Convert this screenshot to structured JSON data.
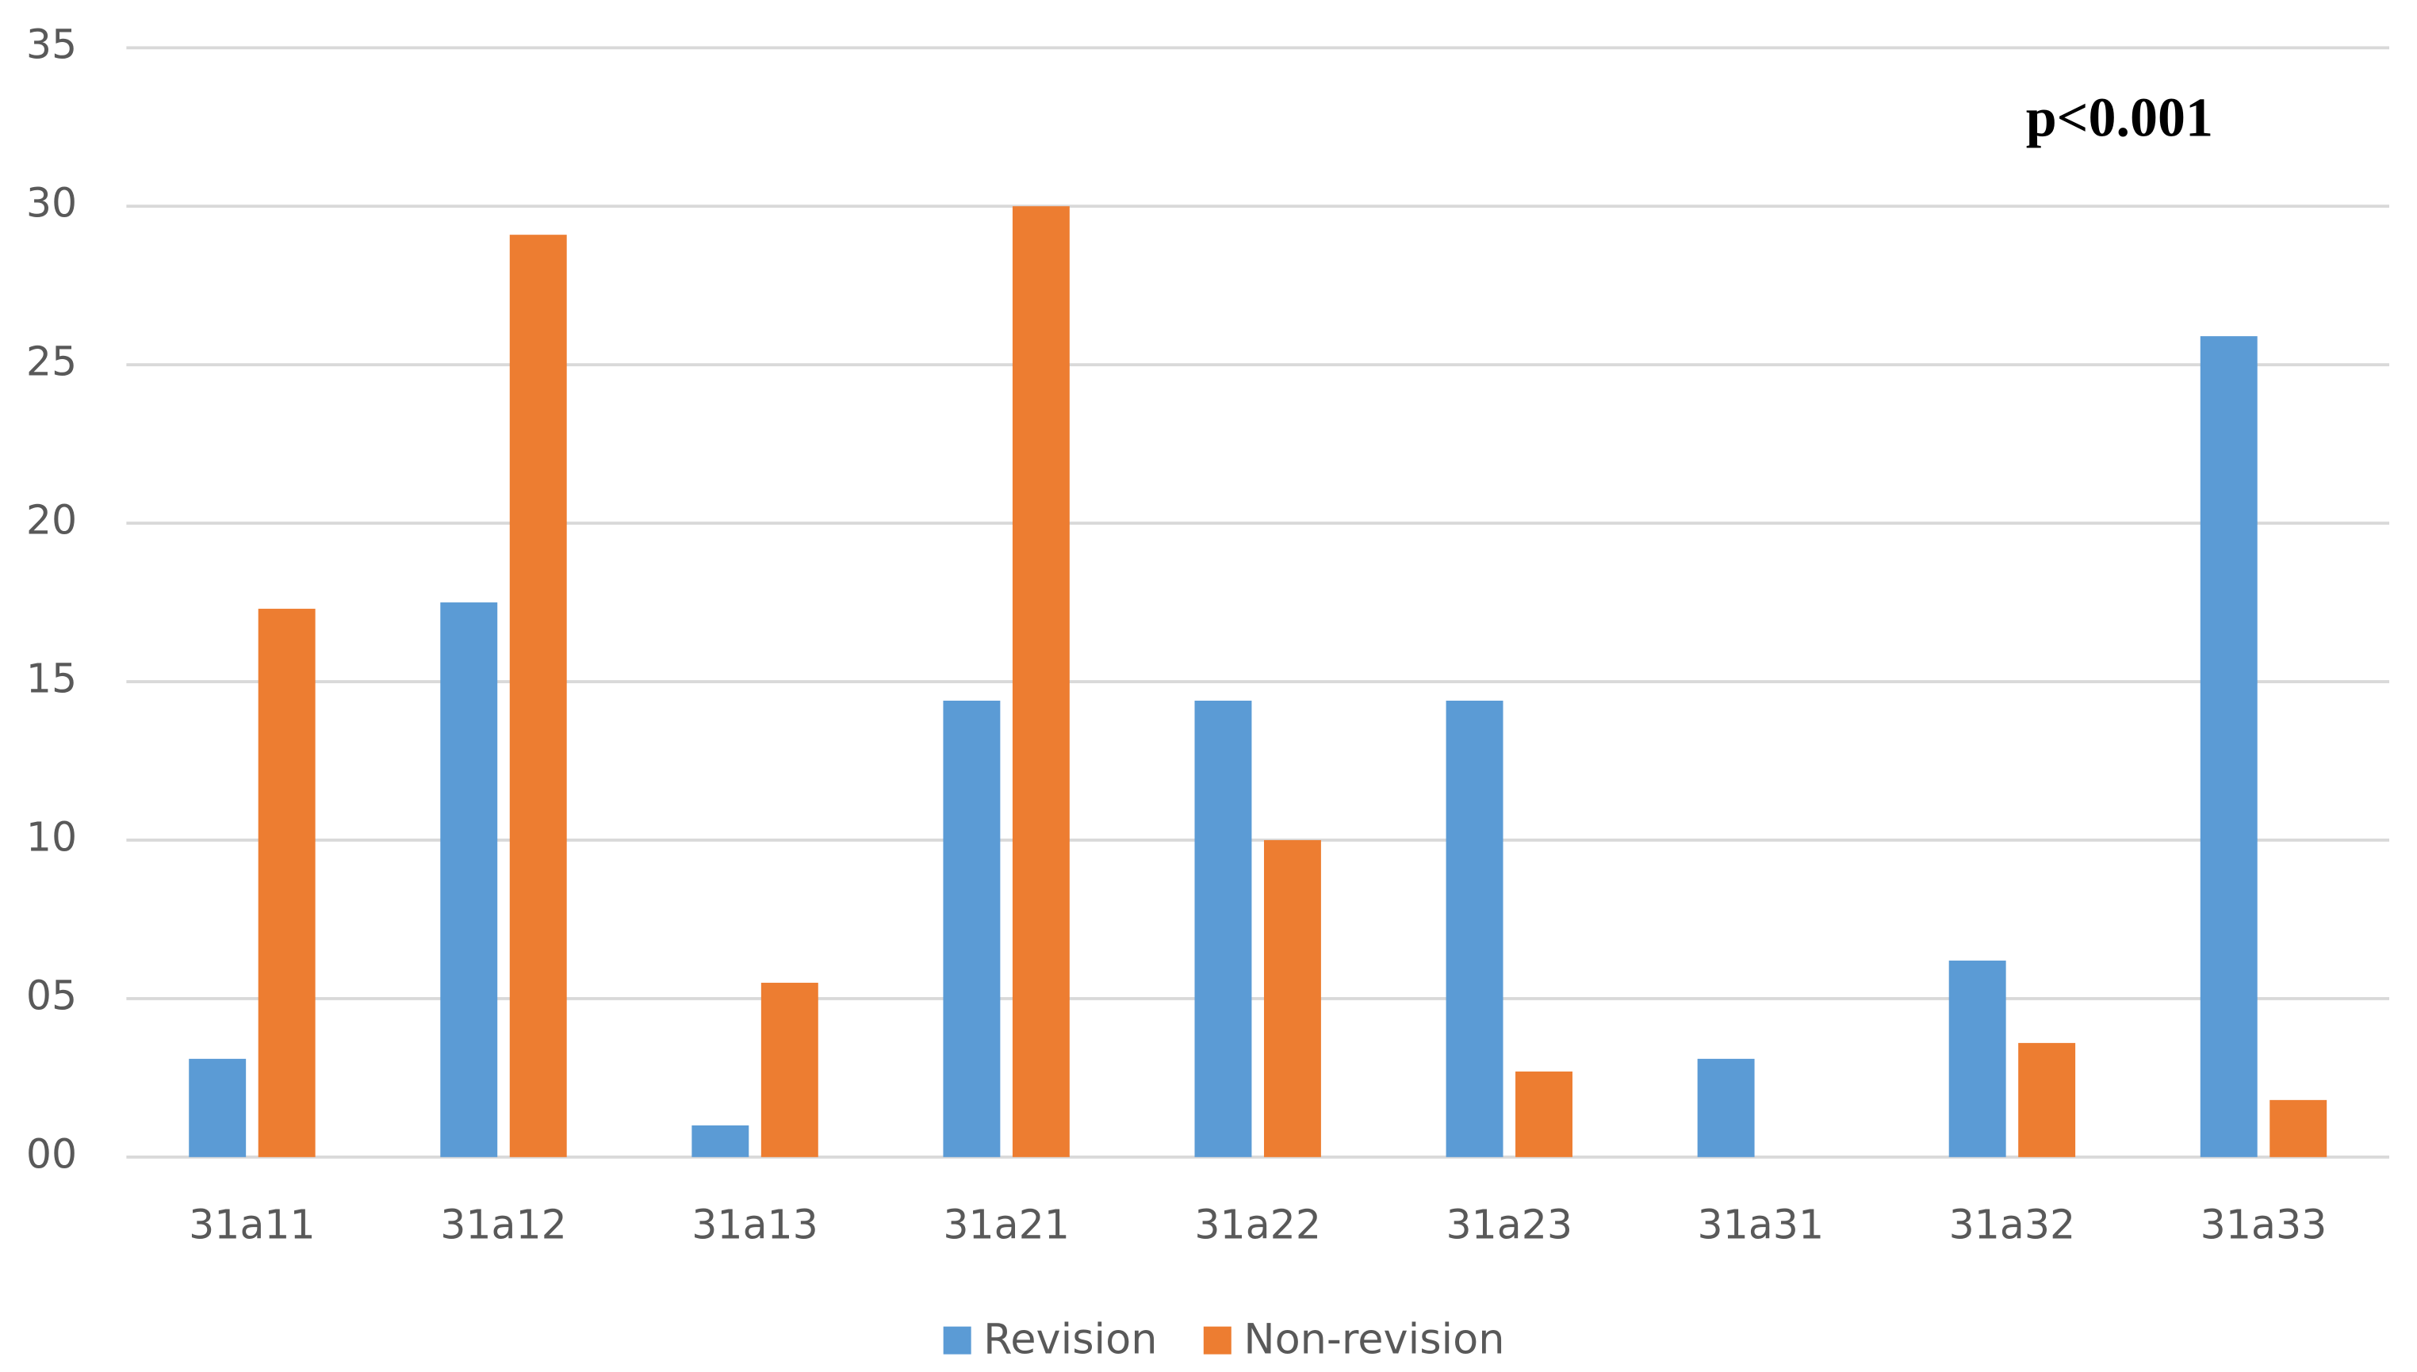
{
  "chart_data": {
    "type": "bar",
    "categories": [
      "31a11",
      "31a12",
      "31a13",
      "31a21",
      "31a22",
      "31a23",
      "31a31",
      "31a32",
      "31a33"
    ],
    "series": [
      {
        "name": "Revision",
        "color": "#5b9bd5",
        "values": [
          3.1,
          17.5,
          1.0,
          14.4,
          14.4,
          14.4,
          3.1,
          6.2,
          25.9
        ]
      },
      {
        "name": "Non-revision",
        "color": "#ed7d31",
        "values": [
          17.3,
          29.1,
          5.5,
          30.0,
          10.0,
          2.7,
          0,
          3.6,
          1.8
        ]
      }
    ],
    "ylim": [
      0,
      35
    ],
    "yticks": [
      {
        "value": 0,
        "label": "00"
      },
      {
        "value": 5,
        "label": "05"
      },
      10,
      15,
      20,
      25,
      30,
      35
    ],
    "grid": true,
    "legend": "bottom",
    "annotation": "p<0.001"
  }
}
